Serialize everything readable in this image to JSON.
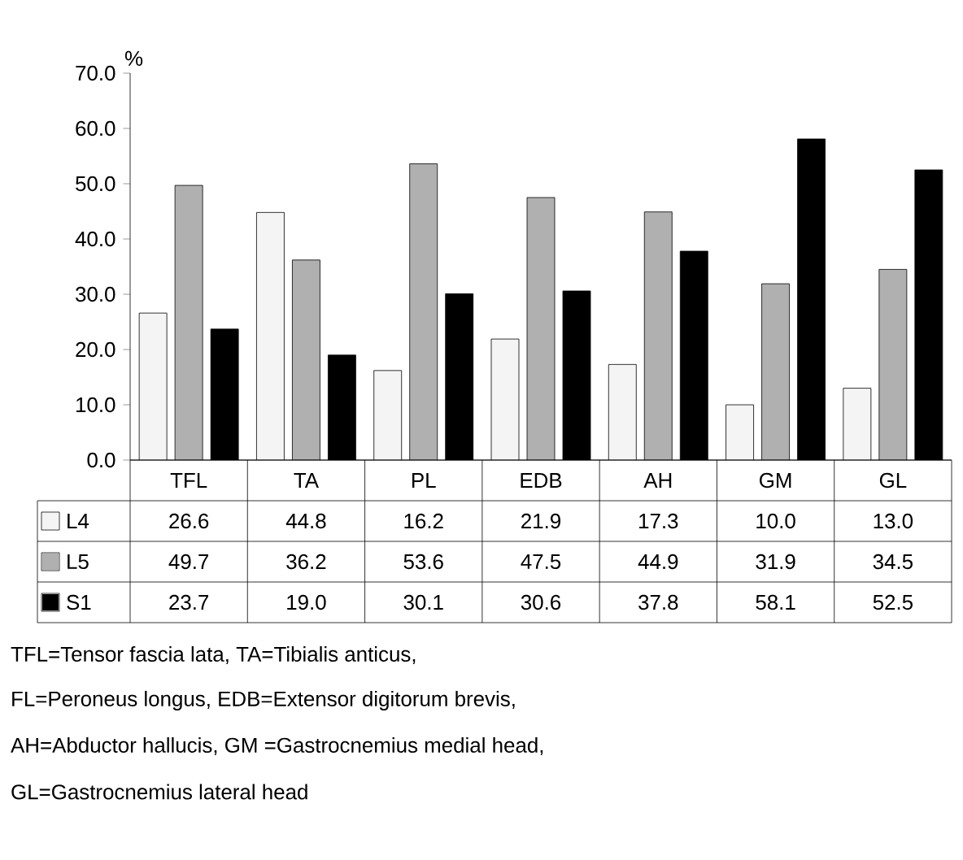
{
  "chart_data": {
    "type": "bar",
    "ylabel": "%",
    "categories": [
      "TFL",
      "TA",
      "PL",
      "EDB",
      "AH",
      "GM",
      "GL"
    ],
    "series": [
      {
        "name": "L4",
        "color": "#f4f4f4",
        "values": [
          26.6,
          44.8,
          16.2,
          21.9,
          17.3,
          10.0,
          13.0
        ],
        "value_labels": [
          "26.6",
          "44.8",
          "16.2",
          "21.9",
          "17.3",
          "10.0",
          "13.0"
        ]
      },
      {
        "name": "L5",
        "color": "#b0b0b0",
        "values": [
          49.7,
          36.2,
          53.6,
          47.5,
          44.9,
          31.9,
          34.5
        ],
        "value_labels": [
          "49.7",
          "36.2",
          "53.6",
          "47.5",
          "44.9",
          "31.9",
          "34.5"
        ]
      },
      {
        "name": "S1",
        "color": "#000000",
        "values": [
          23.7,
          19.0,
          30.1,
          30.6,
          37.8,
          58.1,
          52.5
        ],
        "value_labels": [
          "23.7",
          "19.0",
          "30.1",
          "30.6",
          "37.8",
          "58.1",
          "52.5"
        ]
      }
    ],
    "ylim": [
      0,
      70
    ],
    "yticks": [
      {
        "value": 0,
        "label": "0.0"
      },
      {
        "value": 10,
        "label": "10.0"
      },
      {
        "value": 20,
        "label": "20.0"
      },
      {
        "value": 30,
        "label": "30.0"
      },
      {
        "value": 40,
        "label": "40.0"
      },
      {
        "value": 50,
        "label": "50.0"
      },
      {
        "value": 60,
        "label": "60.0"
      },
      {
        "value": 70,
        "label": "70.0"
      }
    ],
    "legend": "bottom",
    "grid": false,
    "annotations": [
      "TFL=Tensor fascia lata, TA=Tibialis anticus,",
      "FL=Peroneus longus, EDB=Extensor digitorum brevis,",
      "AH=Abductor hallucis, GM =Gastrocnemius medial head,",
      "GL=Gastrocnemius lateral head"
    ]
  }
}
